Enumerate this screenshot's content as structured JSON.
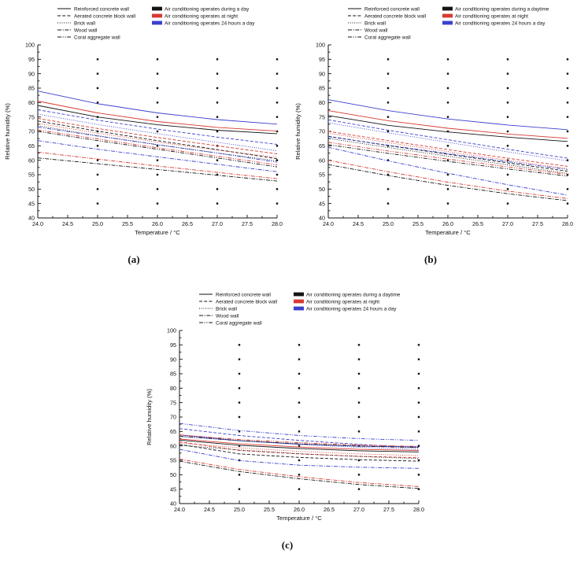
{
  "page": {
    "background": "#ffffff"
  },
  "colors": {
    "ac_day": "#141414",
    "ac_night": "#d63a31",
    "ac_24h": "#3a41cc"
  },
  "chart_data": [
    {
      "type": "line",
      "caption": "(a)",
      "xlabel": "Temperature / °C",
      "ylabel": "Relative humidity (%)",
      "xlim": [
        24.0,
        28.0
      ],
      "ylim": [
        40,
        100
      ],
      "xticks": [
        "24.0",
        "24.5",
        "25.0",
        "25.5",
        "26.0",
        "26.5",
        "27.0",
        "27.5",
        "28.0"
      ],
      "yticks": [
        "40",
        "45",
        "50",
        "55",
        "60",
        "65",
        "70",
        "75",
        "80",
        "85",
        "90",
        "95",
        "100"
      ],
      "x": [
        24,
        25,
        26,
        27,
        28
      ],
      "legend_walls": [
        {
          "label": "Reinforced concrete wall",
          "dash": "solid"
        },
        {
          "label": "Aerated concrete block wall",
          "dash": "dashed"
        },
        {
          "label": "Brick wall",
          "dash": "dotted"
        },
        {
          "label": "Wood wall",
          "dash": "dashdot"
        },
        {
          "label": "Coral aggregate wall",
          "dash": "dashdotdot"
        }
      ],
      "legend_modes": [
        {
          "label": "Air conditioning operates during a day",
          "mode": "day"
        },
        {
          "label": "Air conditioning operates at night",
          "mode": "night"
        },
        {
          "label": "Air conditioning operates 24 hours a day",
          "mode": "h24"
        }
      ],
      "marker_grid": {
        "x": [
          25,
          26,
          27,
          28
        ],
        "y": [
          45,
          50,
          55,
          60,
          65,
          70,
          75,
          80,
          85,
          90,
          95
        ]
      },
      "series": [
        {
          "wall": "Reinforced concrete wall",
          "dash": "solid",
          "modes": {
            "h24": [
              84.0,
              79.6,
              76.4,
              74.1,
              72.5
            ],
            "night": [
              80.5,
              76.4,
              73.4,
              71.4,
              70.1
            ],
            "day": [
              79.0,
              75.0,
              72.3,
              70.4,
              69.2
            ]
          }
        },
        {
          "wall": "Aerated concrete block wall",
          "dash": "dashed",
          "modes": {
            "h24": [
              77.5,
              73.9,
              70.8,
              68.0,
              65.5
            ],
            "night": [
              74.5,
              71.0,
              67.9,
              65.0,
              62.2
            ],
            "day": [
              73.6,
              70.1,
              66.8,
              63.7,
              60.5
            ]
          }
        },
        {
          "wall": "Brick wall",
          "dash": "dotted",
          "modes": {
            "h24": [
              76.0,
              72.4,
              69.2,
              66.2,
              63.3
            ],
            "night": [
              72.8,
              69.4,
              66.3,
              63.5,
              61.0
            ],
            "day": [
              72.0,
              68.5,
              65.4,
              62.5,
              59.8
            ]
          }
        },
        {
          "wall": "Coral aggregate wall",
          "dash": "dashdotdot",
          "modes": {
            "h24": [
              71.5,
              68.4,
              65.4,
              62.5,
              59.3
            ],
            "night": [
              70.5,
              67.4,
              64.3,
              61.4,
              58.4
            ],
            "day": [
              70.0,
              66.8,
              63.8,
              60.8,
              57.7
            ]
          }
        },
        {
          "wall": "Wood wall",
          "dash": "dashdot",
          "modes": {
            "h24": [
              66.8,
              63.8,
              61.2,
              58.6,
              56.0
            ],
            "night": [
              62.8,
              60.4,
              58.0,
              55.8,
              53.6
            ],
            "day": [
              60.8,
              58.8,
              56.8,
              54.8,
              52.8
            ]
          }
        }
      ]
    },
    {
      "type": "line",
      "caption": "(b)",
      "xlabel": "Temperature / °C",
      "ylabel": "Relative humidity (%)",
      "xlim": [
        24.0,
        28.0
      ],
      "ylim": [
        40,
        100
      ],
      "xticks": [
        "24.0",
        "24.5",
        "25.0",
        "25.5",
        "26.0",
        "26.5",
        "27.0",
        "27.5",
        "28.0"
      ],
      "yticks": [
        "40",
        "45",
        "50",
        "55",
        "60",
        "65",
        "70",
        "75",
        "80",
        "85",
        "90",
        "95",
        "100"
      ],
      "x": [
        24,
        25,
        26,
        27,
        28
      ],
      "legend_walls": [
        {
          "label": "Reinforced concrete wall",
          "dash": "solid"
        },
        {
          "label": "Aerated concrete block wall",
          "dash": "dashed"
        },
        {
          "label": "Brick wall",
          "dash": "dotted"
        },
        {
          "label": "Wood wall",
          "dash": "dashdot"
        },
        {
          "label": "Coral aggregate wall",
          "dash": "dashdotdot"
        }
      ],
      "legend_modes": [
        {
          "label": "Air conditioning operates during a daytime",
          "mode": "day"
        },
        {
          "label": "Air conditioning operates at night",
          "mode": "night"
        },
        {
          "label": "Air conditioning operates 24 hours a day",
          "mode": "h24"
        }
      ],
      "marker_grid": {
        "x": [
          25,
          26,
          27,
          28
        ],
        "y": [
          45,
          50,
          55,
          60,
          65,
          70,
          75,
          80,
          85,
          90,
          95
        ]
      },
      "series": [
        {
          "wall": "Reinforced concrete wall",
          "dash": "solid",
          "modes": {
            "h24": [
              81.0,
              77.2,
              74.3,
              72.2,
              70.6
            ],
            "night": [
              77.2,
              73.7,
              71.1,
              69.1,
              67.6
            ],
            "day": [
              75.5,
              72.1,
              69.8,
              68.0,
              66.5
            ]
          }
        },
        {
          "wall": "Aerated concrete block wall",
          "dash": "dashed",
          "modes": {
            "h24": [
              74.0,
              70.4,
              67.1,
              63.8,
              60.7
            ],
            "night": [
              70.0,
              66.8,
              63.7,
              60.7,
              57.9
            ],
            "day": [
              68.3,
              65.1,
              62.1,
              59.1,
              56.2
            ]
          }
        },
        {
          "wall": "Brick wall",
          "dash": "dotted",
          "modes": {
            "h24": [
              73.0,
              69.5,
              66.2,
              62.9,
              59.8
            ],
            "night": [
              69.4,
              66.1,
              63.0,
              60.0,
              57.1
            ],
            "day": [
              67.6,
              64.4,
              61.4,
              58.4,
              55.5
            ]
          }
        },
        {
          "wall": "Coral aggregate wall",
          "dash": "dashdotdot",
          "modes": {
            "h24": [
              68.2,
              65.2,
              62.3,
              59.5,
              56.8
            ],
            "night": [
              66.2,
              63.2,
              60.4,
              57.7,
              55.1
            ],
            "day": [
              65.4,
              62.4,
              59.6,
              57.0,
              54.5
            ]
          }
        },
        {
          "wall": "Wood wall",
          "dash": "dashdot",
          "modes": {
            "h24": [
              64.5,
              59.8,
              55.5,
              51.5,
              47.9
            ],
            "night": [
              60.0,
              56.0,
              52.4,
              49.3,
              46.7
            ],
            "day": [
              58.5,
              54.7,
              51.3,
              48.4,
              46.0
            ]
          }
        }
      ]
    },
    {
      "type": "line",
      "caption": "(c)",
      "xlabel": "Temperature / °C",
      "ylabel": "Relative humidity (%)",
      "xlim": [
        24.0,
        28.0
      ],
      "ylim": [
        40,
        100
      ],
      "xticks": [
        "24.0",
        "24.5",
        "25.0",
        "25.5",
        "26.0",
        "26.5",
        "27.0",
        "27.5",
        "28.0"
      ],
      "yticks": [
        "40",
        "45",
        "50",
        "55",
        "60",
        "65",
        "70",
        "75",
        "80",
        "85",
        "90",
        "95",
        "100"
      ],
      "x": [
        24,
        25,
        26,
        27,
        28
      ],
      "legend_walls": [
        {
          "label": "Reinforced concrete wall",
          "dash": "solid"
        },
        {
          "label": "Aerated concrete block wall",
          "dash": "dashed"
        },
        {
          "label": "Brick wall",
          "dash": "dotted"
        },
        {
          "label": "Wood wall",
          "dash": "dashdot"
        },
        {
          "label": "Coral aggregate wall",
          "dash": "dashdotdot"
        }
      ],
      "legend_modes": [
        {
          "label": "Air conditioning operates during a daytime",
          "mode": "day"
        },
        {
          "label": "Air conditioning operates at night",
          "mode": "night"
        },
        {
          "label": "Air conditioning operates 24 hours a day",
          "mode": "h24"
        }
      ],
      "marker_grid": {
        "x": [
          25,
          26,
          27,
          28
        ],
        "y": [
          45,
          50,
          55,
          60,
          65,
          70,
          75,
          80,
          85,
          90,
          95
        ]
      },
      "series": [
        {
          "wall": "Reinforced concrete wall",
          "dash": "solid",
          "modes": {
            "h24": [
              63.8,
              61.8,
              60.6,
              59.9,
              59.6
            ],
            "night": [
              62.4,
              60.7,
              59.6,
              58.8,
              58.4
            ],
            "day": [
              62.0,
              60.2,
              59.1,
              58.3,
              57.9
            ]
          }
        },
        {
          "wall": "Aerated concrete block wall",
          "dash": "dashed",
          "modes": {
            "h24": [
              66.0,
              63.6,
              61.9,
              60.5,
              59.4
            ],
            "night": [
              61.4,
              58.4,
              57.2,
              56.4,
              55.9
            ],
            "day": [
              60.5,
              57.2,
              56.0,
              55.2,
              54.7
            ]
          }
        },
        {
          "wall": "Brick wall",
          "dash": "dotted",
          "modes": {
            "h24": [
              63.2,
              61.8,
              60.5,
              59.5,
              58.8
            ],
            "night": [
              61.0,
              59.3,
              58.1,
              57.2,
              56.6
            ],
            "day": [
              60.2,
              58.6,
              57.3,
              56.3,
              55.6
            ]
          }
        },
        {
          "wall": "Coral aggregate wall",
          "dash": "dashdotdot",
          "modes": {
            "h24": [
              67.8,
              65.3,
              63.6,
              62.5,
              61.9
            ],
            "night": [
              63.8,
              62.2,
              61.1,
              60.3,
              59.8
            ],
            "day": [
              63.4,
              61.8,
              60.7,
              59.9,
              59.4
            ]
          }
        },
        {
          "wall": "Wood wall",
          "dash": "dashdot",
          "modes": {
            "h24": [
              58.8,
              54.9,
              53.3,
              52.6,
              52.2
            ],
            "night": [
              55.4,
              51.8,
              49.3,
              47.3,
              45.9
            ],
            "day": [
              54.7,
              51.1,
              48.6,
              46.6,
              45.2
            ]
          }
        }
      ]
    }
  ]
}
